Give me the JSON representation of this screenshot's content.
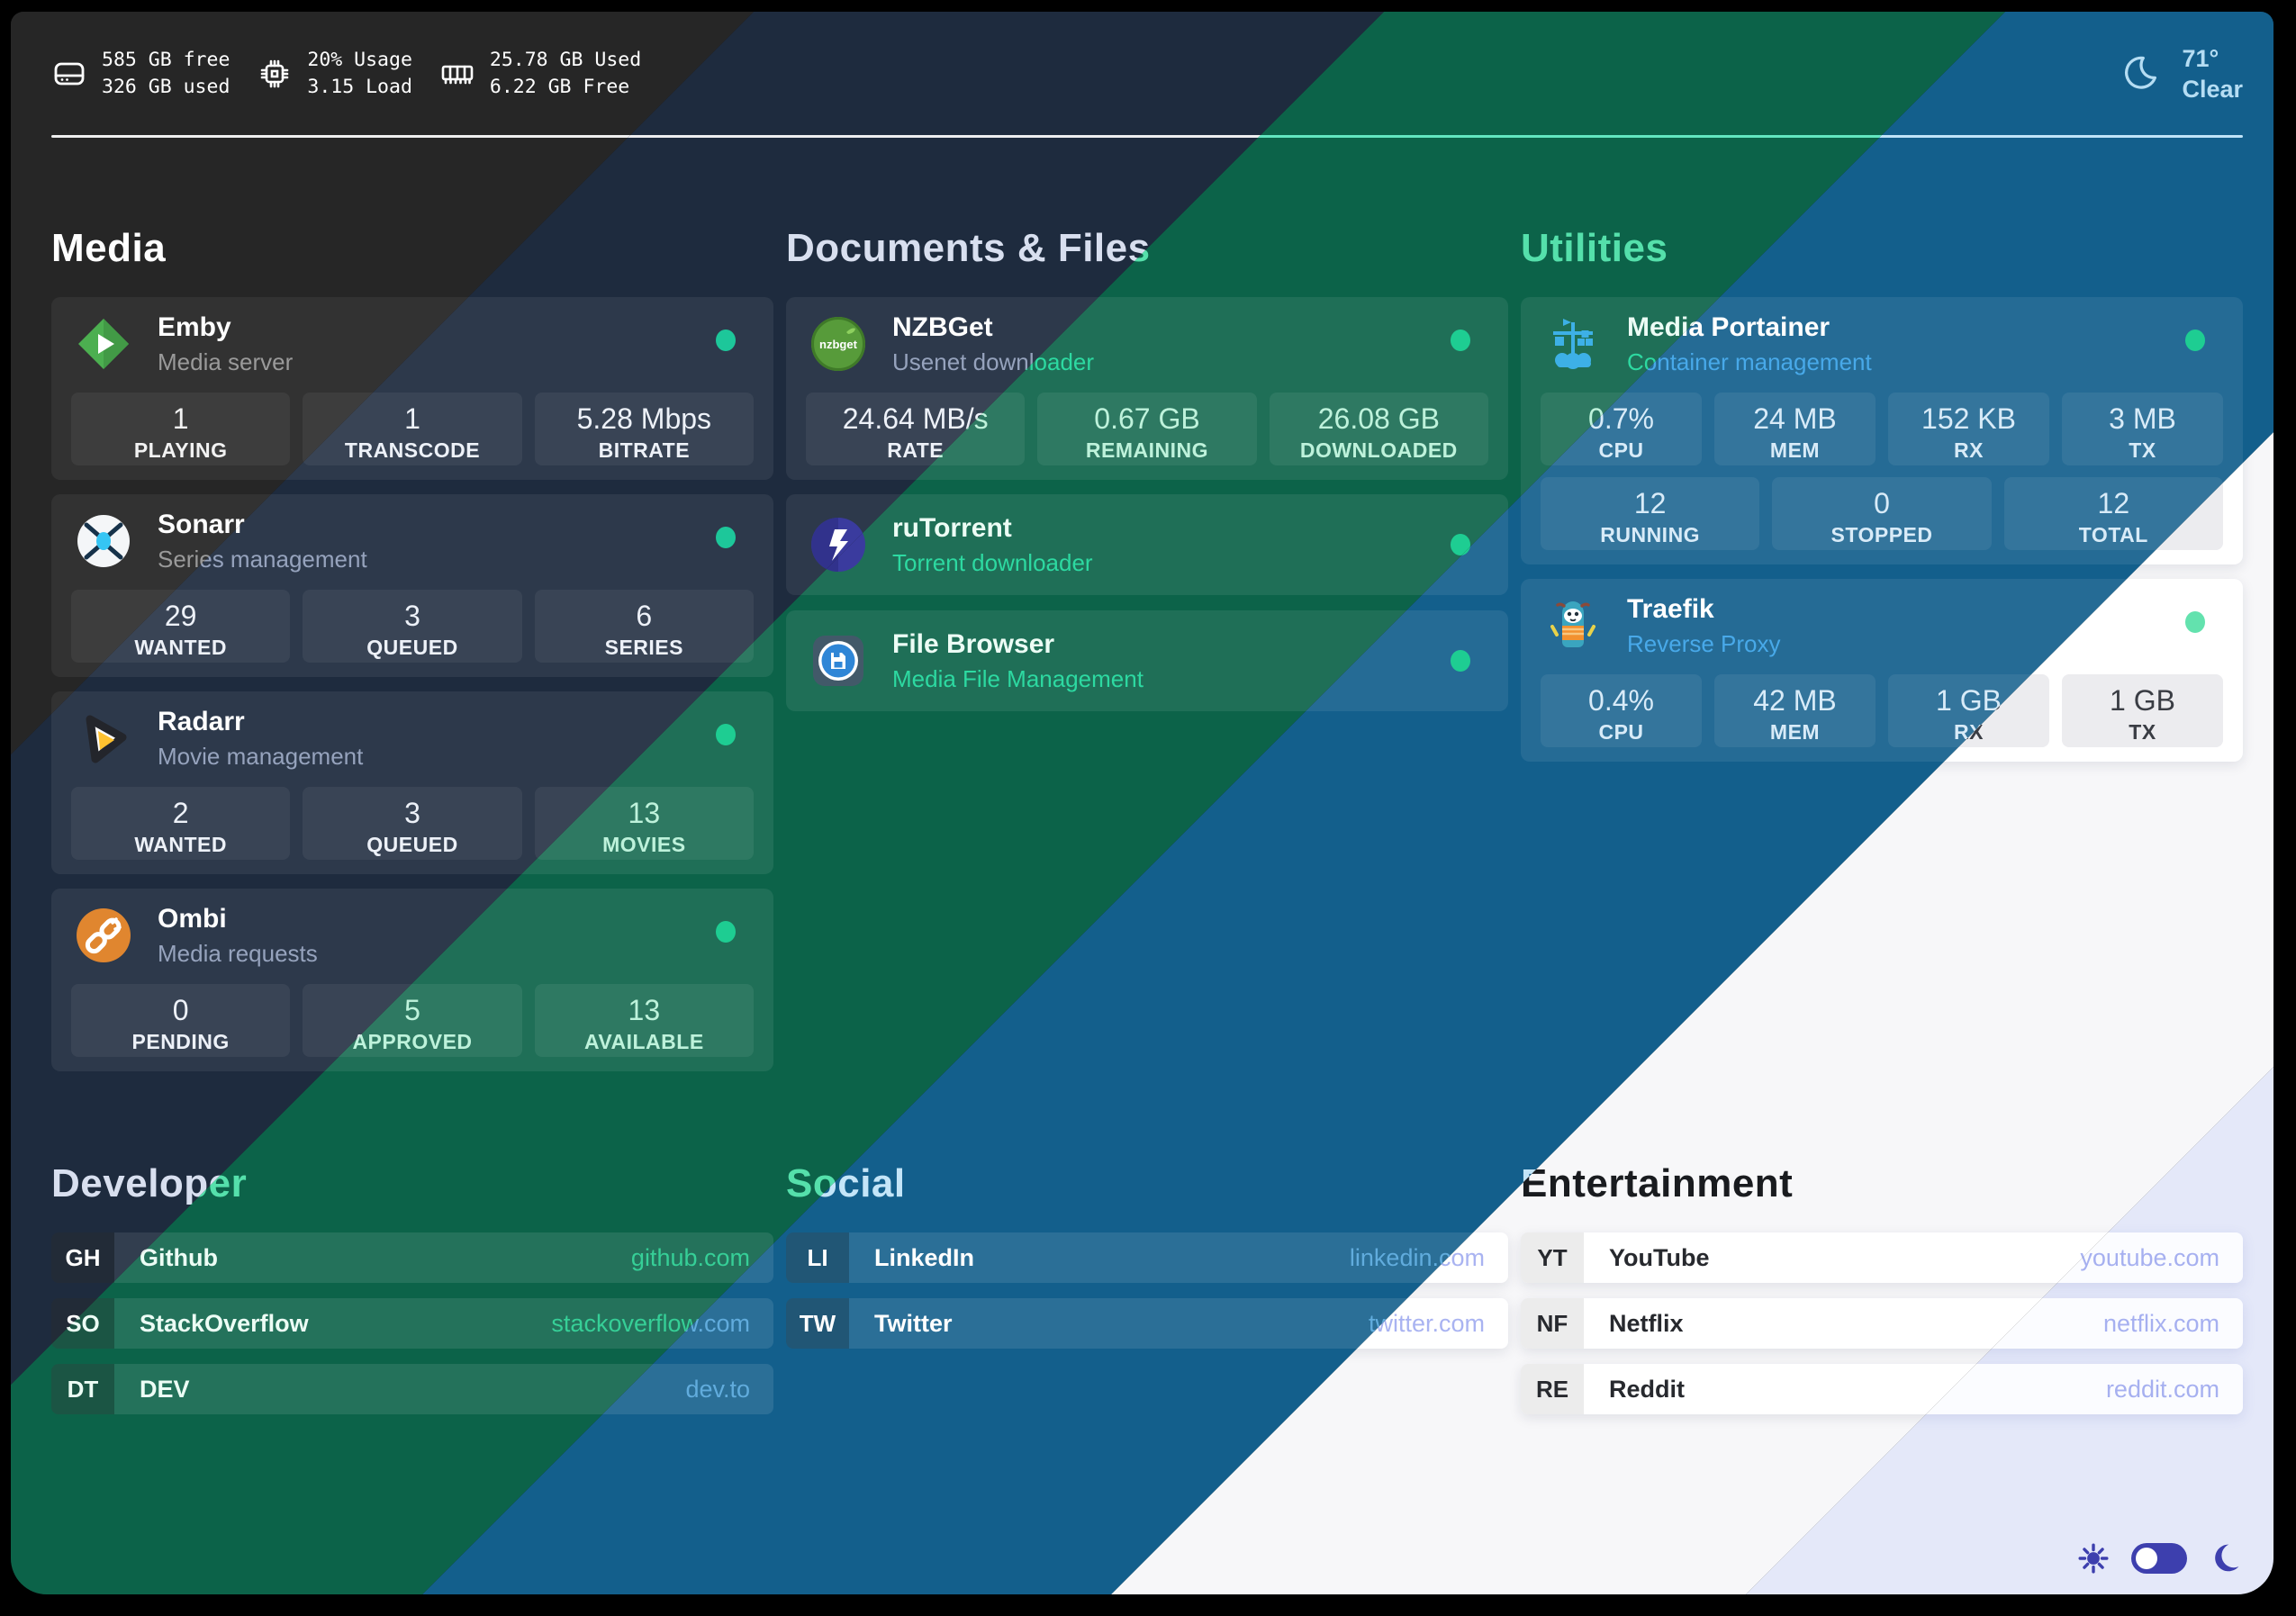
{
  "status_bar": {
    "disk": {
      "icon": "disk-icon",
      "line1": "585 GB free",
      "line2": "326 GB used"
    },
    "cpu": {
      "icon": "cpu-icon",
      "line1": "20% Usage",
      "line2": "3.15 Load"
    },
    "memory": {
      "icon": "ram-icon",
      "line1": "25.78 GB Used",
      "line2": "6.22 GB Free"
    },
    "weather": {
      "icon": "moon-icon",
      "temperature": "71°",
      "condition": "Clear"
    }
  },
  "sections": {
    "media": {
      "title": "Media",
      "cards": [
        {
          "name": "Emby",
          "subtitle": "Media server",
          "icon": "emby-icon",
          "status": "online",
          "stats": [
            {
              "value": "1",
              "label": "PLAYING"
            },
            {
              "value": "1",
              "label": "TRANSCODE"
            },
            {
              "value": "5.28 Mbps",
              "label": "BITRATE"
            }
          ]
        },
        {
          "name": "Sonarr",
          "subtitle": "Series management",
          "icon": "sonarr-icon",
          "status": "online",
          "stats": [
            {
              "value": "29",
              "label": "WANTED"
            },
            {
              "value": "3",
              "label": "QUEUED"
            },
            {
              "value": "6",
              "label": "SERIES"
            }
          ]
        },
        {
          "name": "Radarr",
          "subtitle": "Movie management",
          "icon": "radarr-icon",
          "status": "online",
          "stats": [
            {
              "value": "2",
              "label": "WANTED"
            },
            {
              "value": "3",
              "label": "QUEUED"
            },
            {
              "value": "13",
              "label": "MOVIES"
            }
          ]
        },
        {
          "name": "Ombi",
          "subtitle": "Media requests",
          "icon": "ombi-icon",
          "status": "online",
          "stats": [
            {
              "value": "0",
              "label": "PENDING"
            },
            {
              "value": "5",
              "label": "APPROVED"
            },
            {
              "value": "13",
              "label": "AVAILABLE"
            }
          ]
        }
      ]
    },
    "documents": {
      "title": "Documents & Files",
      "cards": [
        {
          "name": "NZBGet",
          "subtitle": "Usenet downloader",
          "icon": "nzbget-icon",
          "status": "online",
          "stats": [
            {
              "value": "24.64 MB/s",
              "label": "RATE"
            },
            {
              "value": "0.67 GB",
              "label": "REMAINING"
            },
            {
              "value": "26.08 GB",
              "label": "DOWNLOADED"
            }
          ]
        },
        {
          "name": "ruTorrent",
          "subtitle": "Torrent downloader",
          "icon": "rutorrent-icon",
          "status": "online"
        },
        {
          "name": "File Browser",
          "subtitle": "Media File Management",
          "icon": "filebrowser-icon",
          "status": "online"
        }
      ]
    },
    "utilities": {
      "title": "Utilities",
      "cards": [
        {
          "name": "Media Portainer",
          "subtitle": "Container management",
          "icon": "portainer-icon",
          "status": "online",
          "stats": [
            {
              "value": "0.7%",
              "label": "CPU"
            },
            {
              "value": "24 MB",
              "label": "MEM"
            },
            {
              "value": "152 KB",
              "label": "RX"
            },
            {
              "value": "3 MB",
              "label": "TX"
            }
          ],
          "stats2": [
            {
              "value": "12",
              "label": "RUNNING"
            },
            {
              "value": "0",
              "label": "STOPPED"
            },
            {
              "value": "12",
              "label": "TOTAL"
            }
          ]
        },
        {
          "name": "Traefik",
          "subtitle": "Reverse Proxy",
          "icon": "traefik-icon",
          "status": "online",
          "stats": [
            {
              "value": "0.4%",
              "label": "CPU"
            },
            {
              "value": "42 MB",
              "label": "MEM"
            },
            {
              "value": "1 GB",
              "label": "RX"
            },
            {
              "value": "1 GB",
              "label": "TX"
            }
          ]
        }
      ]
    },
    "developer": {
      "title": "Developer",
      "links": [
        {
          "prefix": "GH",
          "name": "Github",
          "url": "github.com"
        },
        {
          "prefix": "SO",
          "name": "StackOverflow",
          "url": "stackoverflow.com"
        },
        {
          "prefix": "DT",
          "name": "DEV",
          "url": "dev.to"
        }
      ]
    },
    "social": {
      "title": "Social",
      "links": [
        {
          "prefix": "LI",
          "name": "LinkedIn",
          "url": "linkedin.com"
        },
        {
          "prefix": "TW",
          "name": "Twitter",
          "url": "twitter.com"
        }
      ]
    },
    "entertainment": {
      "title": "Entertainment",
      "links": [
        {
          "prefix": "YT",
          "name": "YouTube",
          "url": "youtube.com"
        },
        {
          "prefix": "NF",
          "name": "Netflix",
          "url": "netflix.com"
        },
        {
          "prefix": "RE",
          "name": "Reddit",
          "url": "reddit.com"
        }
      ]
    }
  },
  "theme_colors": {
    "bands": [
      "#262626",
      "#1e2b3e",
      "#0c6349",
      "#135f8c",
      "#f7f7f9",
      "#e4e8f9"
    ],
    "status_dot": "#1dc79a",
    "controls_accent": "#3d3fae"
  }
}
